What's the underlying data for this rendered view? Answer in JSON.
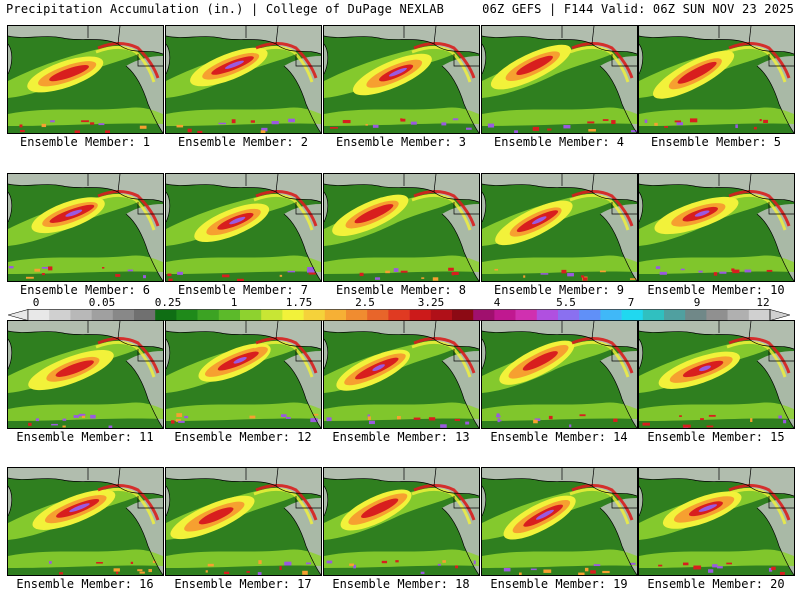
{
  "header": {
    "left": "Precipitation Accumulation (in.) | College of DuPage NEXLAB",
    "right": "06Z GEFS | F144 Valid: 06Z SUN NOV 23 2025"
  },
  "members": [
    {
      "label": "Ensemble Member: 1"
    },
    {
      "label": "Ensemble Member: 2"
    },
    {
      "label": "Ensemble Member: 3"
    },
    {
      "label": "Ensemble Member: 4"
    },
    {
      "label": "Ensemble Member: 5"
    },
    {
      "label": "Ensemble Member: 6"
    },
    {
      "label": "Ensemble Member: 7"
    },
    {
      "label": "Ensemble Member: 8"
    },
    {
      "label": "Ensemble Member: 9"
    },
    {
      "label": "Ensemble Member: 10"
    },
    {
      "label": "Ensemble Member: 11"
    },
    {
      "label": "Ensemble Member: 12"
    },
    {
      "label": "Ensemble Member: 13"
    },
    {
      "label": "Ensemble Member: 14"
    },
    {
      "label": "Ensemble Member: 15"
    },
    {
      "label": "Ensemble Member: 16"
    },
    {
      "label": "Ensemble Member: 17"
    },
    {
      "label": "Ensemble Member: 18"
    },
    {
      "label": "Ensemble Member: 19"
    },
    {
      "label": "Ensemble Member: 20"
    }
  ],
  "colorbar": {
    "ticks": [
      "0",
      "0.05",
      "0.25",
      "1",
      "1.75",
      "2.5",
      "3.25",
      "4",
      "5.5",
      "7",
      "9",
      "12"
    ],
    "colors": [
      "#e8e8e8",
      "#d0d0d0",
      "#b8b8b8",
      "#a0a0a0",
      "#888888",
      "#707070",
      "#0f6e14",
      "#1f8a1a",
      "#3ca323",
      "#5cba2a",
      "#8ed22f",
      "#c8e634",
      "#f2f23a",
      "#f5d23a",
      "#f6b035",
      "#f08c30",
      "#e8652a",
      "#e03a22",
      "#cc1a1a",
      "#b01018",
      "#8c0a14",
      "#a0106e",
      "#c01890",
      "#d030b0",
      "#b050e0",
      "#8a70f0",
      "#6090f8",
      "#40b8f8",
      "#20d8f0",
      "#30c0c0",
      "#50a0a0",
      "#708888",
      "#909090",
      "#b0b0b0",
      "#d0d0d0"
    ]
  },
  "palette": {
    "ocean": "#2f7f1f",
    "light": "#8ed22f",
    "yellow": "#f2f23a",
    "orange": "#f6a030",
    "red": "#d81e1e",
    "purple": "#9a5ae0",
    "land": "#c8c8c8"
  }
}
